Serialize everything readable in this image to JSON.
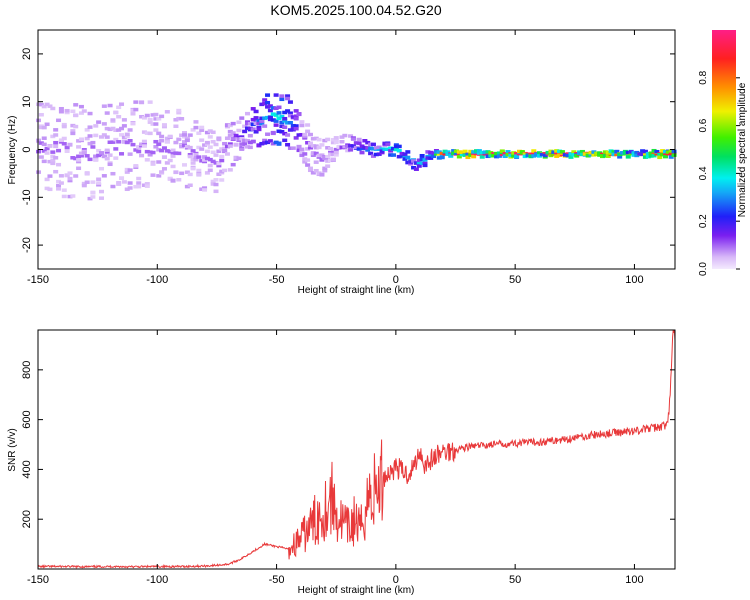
{
  "title": "KOM5.2025.100.04.52.G20",
  "colors": {
    "snr_line": "#e8393a",
    "axis": "#000000",
    "low": "#d8b8f8",
    "high": "#ff1040"
  },
  "chart_data": [
    {
      "type": "heatmap",
      "xlabel": "Height of straight line (km)",
      "ylabel": "Frequency (Hz)",
      "xlim": [
        -150,
        117
      ],
      "ylim": [
        -25,
        25
      ],
      "x_ticks": [
        "-150",
        "-100",
        "-50",
        "0",
        "50",
        "100"
      ],
      "y_ticks": [
        "-20",
        "-10",
        "0",
        "10",
        "20"
      ],
      "grid": false,
      "colorbar": {
        "label": "Normalized spectral amplitude",
        "range": [
          0,
          1
        ],
        "ticks": [
          "0.0",
          "0.2",
          "0.4",
          "0.6",
          "0.8"
        ],
        "colormap": "purple-blue-cyan-green-yellow-red"
      },
      "ridge": {
        "x": [
          -150,
          -130,
          -110,
          -90,
          -75,
          -68,
          -62,
          -56,
          -50,
          -45,
          -40,
          -35,
          -30,
          -25,
          -20,
          -15,
          -10,
          -5,
          0,
          5,
          10,
          15,
          20,
          30,
          50,
          70,
          90,
          100,
          110,
          117
        ],
        "freq": [
          1,
          -1,
          1,
          0,
          -3,
          2,
          4,
          6,
          7,
          6,
          3,
          -1,
          -2,
          0,
          1,
          0,
          0,
          0,
          0,
          -2,
          -3,
          -1,
          -1,
          -1,
          -1,
          -1,
          -1,
          -1,
          -1,
          -1
        ],
        "amplitude": [
          0.1,
          0.1,
          0.1,
          0.1,
          0.1,
          0.12,
          0.2,
          0.3,
          0.4,
          0.3,
          0.15,
          0.1,
          0.1,
          0.1,
          0.15,
          0.25,
          0.3,
          0.35,
          0.4,
          0.3,
          0.35,
          0.3,
          0.9,
          0.95,
          0.95,
          0.95,
          0.9,
          0.5,
          0.9,
          0.9
        ],
        "spread_hz": [
          10,
          10,
          10,
          8,
          6,
          5,
          4,
          5,
          6,
          6,
          5,
          4,
          4,
          3,
          2,
          2,
          1.5,
          1.5,
          1.5,
          1.5,
          1.5,
          1,
          0.7,
          0.7,
          0.7,
          0.7,
          0.7,
          0.7,
          0.7,
          0.7
        ]
      }
    },
    {
      "type": "line",
      "xlabel": "Height of straight line (km)",
      "ylabel": "SNR (v/v)",
      "xlim": [
        -150,
        117
      ],
      "ylim": [
        0,
        960
      ],
      "x_ticks": [
        "-150",
        "-100",
        "-50",
        "0",
        "50",
        "100"
      ],
      "y_ticks": [
        "200",
        "400",
        "600",
        "800"
      ],
      "grid": false,
      "series": [
        {
          "x": [
            -150,
            -140,
            -130,
            -120,
            -110,
            -100,
            -90,
            -80,
            -75,
            -70,
            -65,
            -60,
            -55,
            -50,
            -45,
            -40,
            -35,
            -30,
            -27,
            -25,
            -22,
            -20,
            -17,
            -15,
            -12,
            -10,
            -8,
            -5,
            0,
            5,
            8,
            10,
            12,
            15,
            18,
            20,
            25,
            30,
            40,
            50,
            60,
            70,
            80,
            90,
            100,
            110,
            114,
            115,
            116
          ],
          "y": [
            10,
            10,
            9,
            10,
            9,
            10,
            10,
            12,
            15,
            20,
            40,
            70,
            100,
            90,
            80,
            120,
            180,
            240,
            290,
            220,
            180,
            160,
            200,
            150,
            280,
            300,
            320,
            370,
            410,
            380,
            420,
            480,
            420,
            440,
            460,
            470,
            480,
            490,
            500,
            505,
            510,
            520,
            535,
            545,
            555,
            570,
            580,
            700,
            940
          ]
        }
      ]
    }
  ]
}
